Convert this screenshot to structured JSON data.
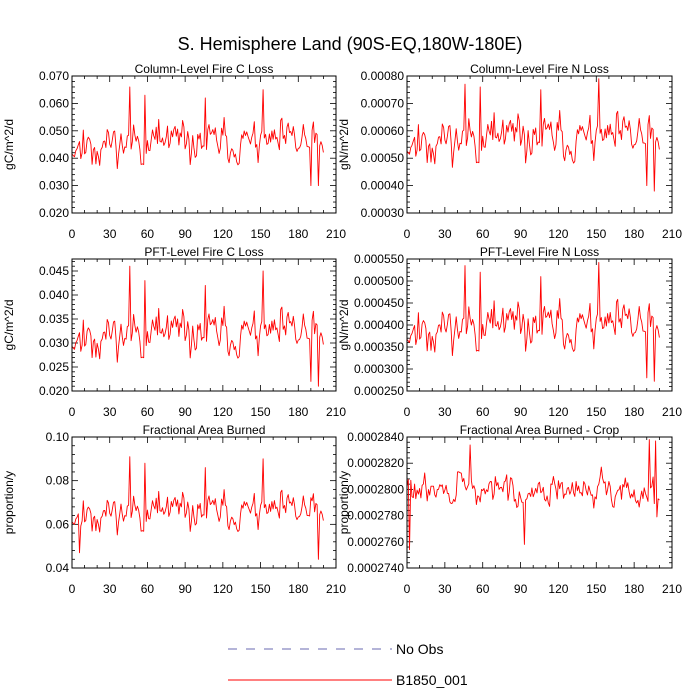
{
  "figure_title": "S. Hemisphere Land (90S-EQ,180W-180E)",
  "legend": [
    {
      "label": "No Obs",
      "color": "#6a6ab0",
      "style": "dashed"
    },
    {
      "label": "B1850_001",
      "color": "#ff0000",
      "style": "solid"
    }
  ],
  "chart_data": [
    {
      "type": "line",
      "title": "Column-Level Fire C Loss",
      "ylabel": "gC/m^2/d",
      "xlim": [
        0,
        210
      ],
      "ylim": [
        0.02,
        0.07
      ],
      "xticks": [
        "0",
        "30",
        "60",
        "90",
        "120",
        "150",
        "180",
        "210"
      ],
      "yticks": [
        "0.020",
        "0.030",
        "0.040",
        "0.050",
        "0.060",
        "0.070"
      ],
      "ytick_values": [
        0.02,
        0.03,
        0.04,
        0.05,
        0.06,
        0.07
      ],
      "series": [
        {
          "name": "B1850_001",
          "color": "#ff0000",
          "min": 0.03,
          "max": 0.066,
          "mean": 0.0455,
          "spread": 0.0072,
          "seed": 11,
          "peaks": [
            [
              46,
              0.066
            ],
            [
              152,
              0.065
            ],
            [
              58,
              0.063
            ],
            [
              106,
              0.062
            ],
            [
              196,
              0.029
            ],
            [
              190,
              0.03
            ]
          ]
        }
      ]
    },
    {
      "type": "line",
      "title": "Column-Level Fire N Loss",
      "ylabel": "gN/m^2/d",
      "xlim": [
        0,
        210
      ],
      "ylim": [
        0.0003,
        0.0008
      ],
      "xticks": [
        "0",
        "30",
        "60",
        "90",
        "120",
        "150",
        "180",
        "210"
      ],
      "yticks": [
        "0.00030",
        "0.00040",
        "0.00050",
        "0.00060",
        "0.00070",
        "0.00080"
      ],
      "ytick_values": [
        0.0003,
        0.0004,
        0.0005,
        0.0006,
        0.0007,
        0.0008
      ],
      "series": [
        {
          "name": "B1850_001",
          "color": "#ff0000",
          "min": 0.00038,
          "max": 0.00079,
          "mean": 0.00057,
          "spread": 8e-05,
          "seed": 11,
          "peaks": [
            [
              46,
              0.00077
            ],
            [
              152,
              0.00079
            ],
            [
              58,
              0.00076
            ],
            [
              106,
              0.00075
            ],
            [
              196,
              0.00038
            ],
            [
              190,
              0.0004
            ]
          ]
        }
      ]
    },
    {
      "type": "line",
      "title": "PFT-Level Fire C Loss",
      "ylabel": "gC/m^2/d",
      "xlim": [
        0,
        210
      ],
      "ylim": [
        0.02,
        0.0475
      ],
      "xticks": [
        "0",
        "30",
        "60",
        "90",
        "120",
        "150",
        "180",
        "210"
      ],
      "yticks": [
        "0.020",
        "0.025",
        "0.030",
        "0.035",
        "0.040",
        "0.045"
      ],
      "ytick_values": [
        0.02,
        0.025,
        0.03,
        0.035,
        0.04,
        0.045
      ],
      "series": [
        {
          "name": "B1850_001",
          "color": "#ff0000",
          "min": 0.021,
          "max": 0.046,
          "mean": 0.0318,
          "spread": 0.0045,
          "seed": 11,
          "peaks": [
            [
              46,
              0.046
            ],
            [
              152,
              0.045
            ],
            [
              58,
              0.043
            ],
            [
              106,
              0.042
            ],
            [
              196,
              0.021
            ],
            [
              190,
              0.022
            ]
          ]
        }
      ]
    },
    {
      "type": "line",
      "title": "PFT-Level Fire N Loss",
      "ylabel": "gN/m^2/d",
      "xlim": [
        0,
        210
      ],
      "ylim": [
        0.00025,
        0.00055
      ],
      "xticks": [
        "0",
        "30",
        "60",
        "90",
        "120",
        "150",
        "180",
        "210"
      ],
      "yticks": [
        "0.000250",
        "0.000300",
        "0.000350",
        "0.000400",
        "0.000450",
        "0.000500",
        "0.000550"
      ],
      "ytick_values": [
        0.00025,
        0.0003,
        0.00035,
        0.0004,
        0.00045,
        0.0005,
        0.00055
      ],
      "series": [
        {
          "name": "B1850_001",
          "color": "#ff0000",
          "min": 0.000272,
          "max": 0.000542,
          "mean": 0.000395,
          "spread": 5e-05,
          "seed": 11,
          "peaks": [
            [
              46,
              0.000535
            ],
            [
              152,
              0.000542
            ],
            [
              58,
              0.00052
            ],
            [
              106,
              0.00051
            ],
            [
              196,
              0.000272
            ],
            [
              190,
              0.00028
            ]
          ]
        }
      ]
    },
    {
      "type": "line",
      "title": "Fractional Area Burned",
      "ylabel": "proportion/y",
      "xlim": [
        0,
        210
      ],
      "ylim": [
        0.04,
        0.1
      ],
      "xticks": [
        "0",
        "30",
        "60",
        "90",
        "120",
        "150",
        "180",
        "210"
      ],
      "yticks": [
        "0.04",
        "0.06",
        "0.08",
        "0.10"
      ],
      "ytick_values": [
        0.04,
        0.06,
        0.08,
        0.1
      ],
      "series": [
        {
          "name": "B1850_001",
          "color": "#ff0000",
          "min": 0.044,
          "max": 0.091,
          "mean": 0.0655,
          "spread": 0.008,
          "seed": 11,
          "peaks": [
            [
              46,
              0.091
            ],
            [
              152,
              0.09
            ],
            [
              58,
              0.088
            ],
            [
              106,
              0.086
            ],
            [
              196,
              0.044
            ],
            [
              6,
              0.047
            ]
          ]
        }
      ]
    },
    {
      "type": "line",
      "title": "Fractional Area Burned - Crop",
      "ylabel": "proportion/y",
      "xlim": [
        0,
        210
      ],
      "ylim": [
        0.000274,
        0.000284
      ],
      "xticks": [
        "0",
        "30",
        "60",
        "90",
        "120",
        "150",
        "180",
        "210"
      ],
      "yticks": [
        "0.0002740",
        "0.0002760",
        "0.0002780",
        "0.0002800",
        "0.0002820",
        "0.0002840"
      ],
      "ytick_values": [
        0.000274,
        0.000276,
        0.000278,
        0.00028,
        0.000282,
        0.000284
      ],
      "series": [
        {
          "name": "B1850_001",
          "color": "#ff0000",
          "min": 0.0002754,
          "max": 0.0002838,
          "mean": 0.0002799,
          "spread": 1.1e-06,
          "seed": 29,
          "peaks": [
            [
              2,
              0.0002754
            ],
            [
              50,
              0.0002834
            ],
            [
              93,
              0.0002758
            ],
            [
              192,
              0.0002838
            ],
            [
              197,
              0.0002837
            ],
            [
              198,
              0.0002779
            ]
          ]
        }
      ]
    }
  ]
}
